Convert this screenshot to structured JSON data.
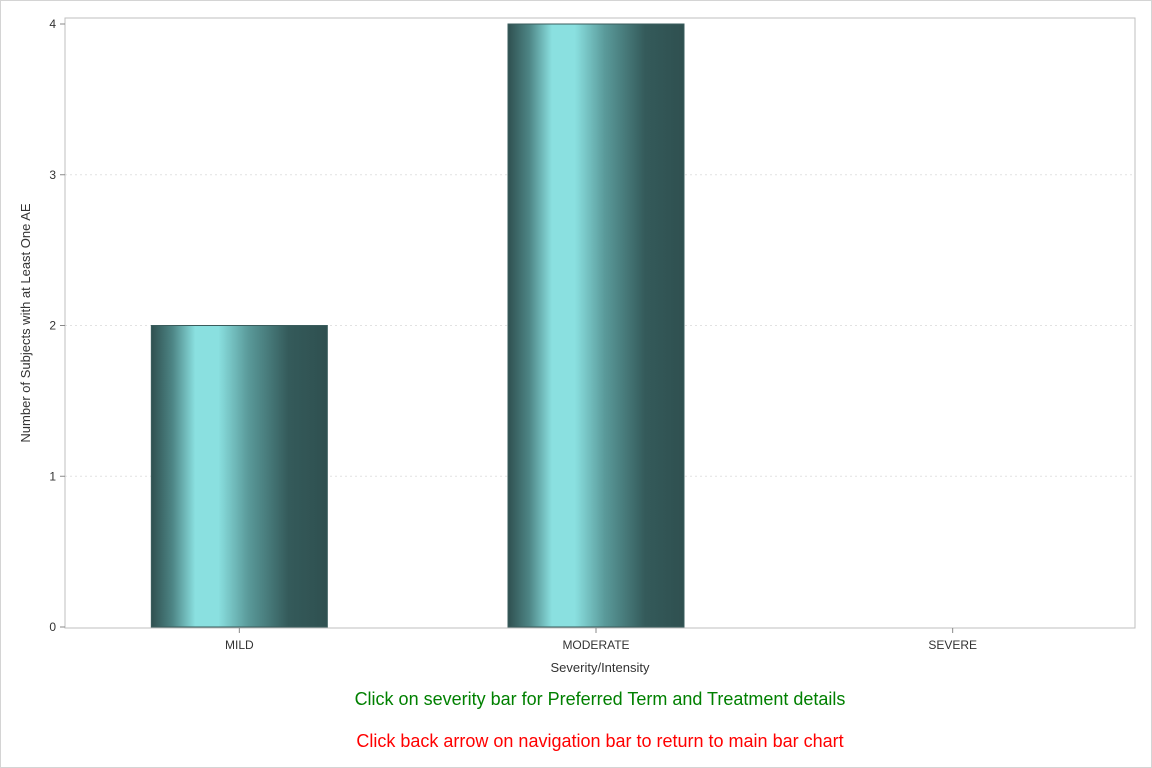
{
  "chart_data": {
    "type": "bar",
    "categories": [
      "MILD",
      "MODERATE",
      "SEVERE"
    ],
    "values": [
      2,
      4,
      0
    ],
    "xlabel": "Severity/Intensity",
    "ylabel": "Number of Subjects with at Least One AE",
    "ylim": [
      0,
      4
    ],
    "yticks": [
      0,
      1,
      2,
      3,
      4
    ],
    "grid": true,
    "legend": "none"
  },
  "footnotes": {
    "line1": "Click on severity bar for Preferred Term and Treatment details",
    "line2": "Click back arrow on navigation bar to return to main bar chart"
  },
  "colors": {
    "bar_dark": "#2f5050",
    "bar_light": "#8ae0e0",
    "footnote1": "#008000",
    "footnote2": "#ff0000",
    "axis": "#888888",
    "grid": "#e2e2e2"
  }
}
